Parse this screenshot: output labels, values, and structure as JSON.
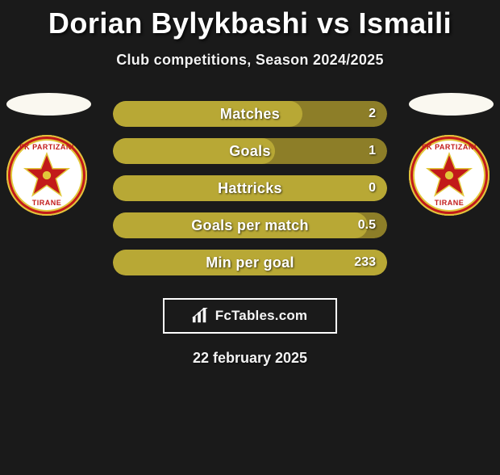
{
  "title": "Dorian Bylykbashi vs Ismaili",
  "subtitle": "Club competitions, Season 2024/2025",
  "date": "22 february 2025",
  "brand": "FcTables.com",
  "colors": {
    "background": "#1a1a1a",
    "bar_track": "#8d7e28",
    "bar_fill": "#b8a835",
    "text": "#ffffff",
    "badge_red": "#c21a1a",
    "badge_gold": "#e1c73a",
    "avatar_ellipse": "#faf8f0"
  },
  "badge": {
    "top_text": "FK PARTIZANI",
    "bottom_text": "TIRANE"
  },
  "stats": [
    {
      "label": "Matches",
      "value": "2",
      "fill_pct": 69
    },
    {
      "label": "Goals",
      "value": "1",
      "fill_pct": 59
    },
    {
      "label": "Hattricks",
      "value": "0",
      "fill_pct": 100
    },
    {
      "label": "Goals per match",
      "value": "0.5",
      "fill_pct": 93
    },
    {
      "label": "Min per goal",
      "value": "233",
      "fill_pct": 100
    }
  ]
}
